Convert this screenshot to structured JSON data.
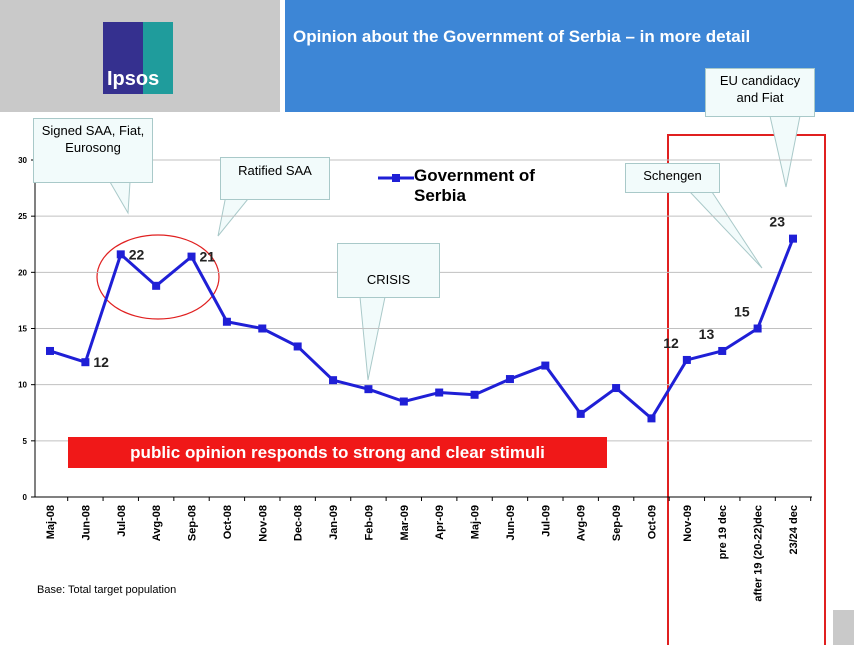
{
  "logo": "Ipsos",
  "slide_title": "Opinion about the Government of Serbia – in more detail",
  "footnote": "Base: Total target population",
  "banner": "public opinion responds to strong and clear stimuli",
  "annotations": [
    "Signed SAA, Fiat, Eurosong",
    "Ratified SAA",
    "CRISIS",
    "Schengen",
    "EU candidacy and Fiat"
  ],
  "chart_data": {
    "type": "line",
    "categories": [
      "Maj-08",
      "Jun-08",
      "Jul-08",
      "Avg-08",
      "Sep-08",
      "Oct-08",
      "Nov-08",
      "Dec-08",
      "Jan-09",
      "Feb-09",
      "Mar-09",
      "Apr-09",
      "Maj-09",
      "Jun-09",
      "Jul-09",
      "Avg-09",
      "Sep-09",
      "Oct-09",
      "Nov-09",
      "pre 19 dec",
      "after 19 (20-22)dec",
      "23/24 dec"
    ],
    "series": [
      {
        "name": "Government of Serbia",
        "color": "#1f1fd6",
        "values": [
          13,
          12,
          21.6,
          18.8,
          21.4,
          15.6,
          15,
          13.4,
          10.4,
          9.6,
          8.5,
          9.3,
          9.1,
          10.5,
          11.7,
          7.4,
          9.7,
          7.0,
          12.2,
          13,
          15,
          23
        ],
        "value_labels": [
          null,
          "12",
          "22",
          null,
          "21",
          null,
          null,
          null,
          null,
          null,
          null,
          null,
          null,
          null,
          null,
          null,
          null,
          null,
          "12",
          "13",
          "15",
          "23"
        ]
      }
    ],
    "ylim": [
      0,
      30
    ],
    "yticks": [
      0,
      5,
      10,
      15,
      20,
      25,
      30
    ],
    "grid": true
  }
}
